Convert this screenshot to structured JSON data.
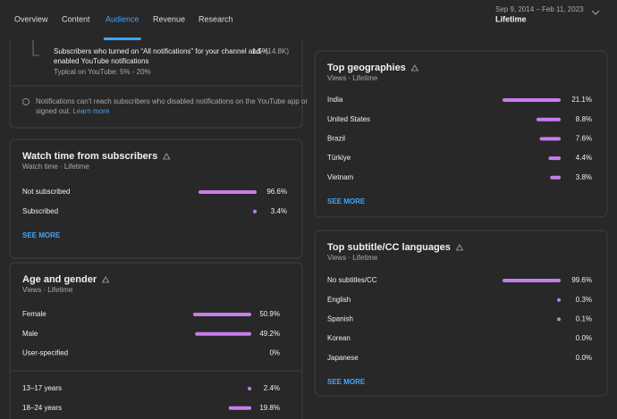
{
  "nav": {
    "tabs": [
      "Overview",
      "Content",
      "Audience",
      "Revenue",
      "Research"
    ],
    "active": 2,
    "date_range": "Sep 9, 2014 – Feb 11, 2023",
    "period": "Lifetime"
  },
  "notifications": {
    "metric_lines": [
      "Subscribers who turned on “All notifications” for your channel and",
      "enabled YouTube notifications"
    ],
    "value": "1.5%",
    "count": "(14.8K)",
    "typical": "Typical on YouTube: 5% - 20%",
    "note_lines": [
      "Notifications can't reach subscribers who disabled notifications on the YouTube app or",
      "signed out."
    ],
    "learn_more": "Learn more"
  },
  "cards": [
    {
      "title": "Watch time from subscribers",
      "subtitle": "Watch time · Lifetime",
      "groups": [
        [
          {
            "label": "Not subscribed",
            "value": 96.6,
            "value_label": "96.6%"
          },
          {
            "label": "Subscribed",
            "value": 3.4,
            "value_label": "3.4%"
          }
        ]
      ],
      "see_more": "SEE MORE"
    },
    {
      "title": "Age and gender",
      "subtitle": "Views · Lifetime",
      "groups": [
        [
          {
            "label": "Female",
            "value": 50.9,
            "value_label": "50.9%"
          },
          {
            "label": "Male",
            "value": 49.2,
            "value_label": "49.2%"
          },
          {
            "label": "User-specified",
            "value": 0,
            "value_label": "0%"
          }
        ],
        [
          {
            "label": "13–17 years",
            "value": 2.4,
            "value_label": "2.4%"
          },
          {
            "label": "18–24 years",
            "value": 19.8,
            "value_label": "19.8%"
          }
        ]
      ]
    },
    {
      "title": "Top geographies",
      "subtitle": "Views · Lifetime",
      "groups": [
        [
          {
            "label": "India",
            "value": 21.1,
            "value_label": "21.1%"
          },
          {
            "label": "United States",
            "value": 8.8,
            "value_label": "8.8%"
          },
          {
            "label": "Brazil",
            "value": 7.6,
            "value_label": "7.6%"
          },
          {
            "label": "Türkiye",
            "value": 4.4,
            "value_label": "4.4%"
          },
          {
            "label": "Vietnam",
            "value": 3.8,
            "value_label": "3.8%"
          }
        ]
      ],
      "see_more": "SEE MORE"
    },
    {
      "title": "Top subtitle/CC languages",
      "subtitle": "Views · Lifetime",
      "groups": [
        [
          {
            "label": "No subtitles/CC",
            "value": 99.6,
            "value_label": "99.6%"
          },
          {
            "label": "English",
            "value": 0.3,
            "value_label": "0.3%"
          },
          {
            "label": "Spanish",
            "value": 0.1,
            "value_label": "0.1%"
          },
          {
            "label": "Korean",
            "value": 0.0,
            "value_label": "0.0%"
          },
          {
            "label": "Japanese",
            "value": 0.0,
            "value_label": "0.0%"
          }
        ]
      ],
      "see_more": "SEE MORE"
    }
  ]
}
